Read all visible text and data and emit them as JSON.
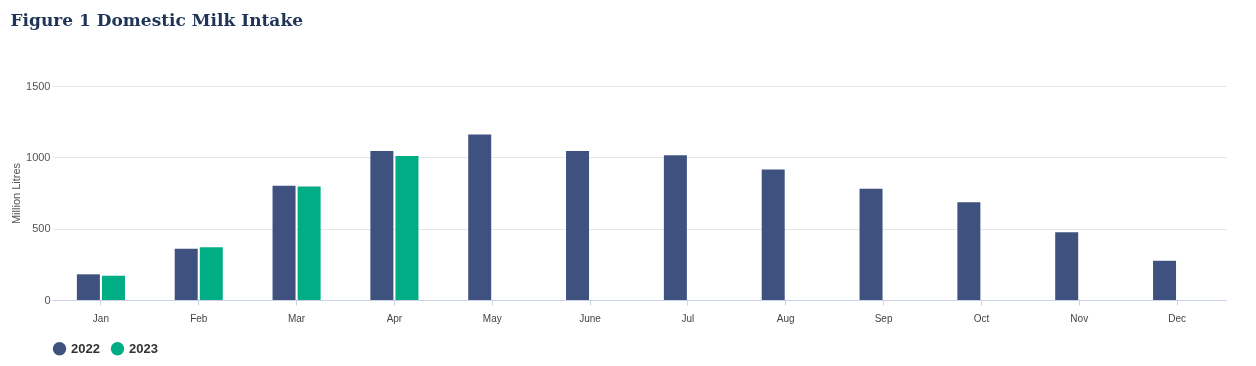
{
  "chart_data": {
    "type": "bar",
    "title": "Figure 1 Domestic Milk Intake",
    "ylabel": "Million Litres",
    "categories": [
      "Jan",
      "Feb",
      "Mar",
      "Apr",
      "May",
      "June",
      "Jul",
      "Aug",
      "Sep",
      "Oct",
      "Nov",
      "Dec"
    ],
    "series": [
      {
        "name": "2022",
        "color": "#3f527f",
        "values": [
          180,
          360,
          800,
          1045,
          1160,
          1045,
          1015,
          915,
          780,
          685,
          475,
          275
        ]
      },
      {
        "name": "2023",
        "color": "#00ad85",
        "values": [
          170,
          370,
          795,
          1010,
          null,
          null,
          null,
          null,
          null,
          null,
          null,
          null
        ]
      }
    ],
    "ylim": [
      0,
      1500
    ],
    "yticks": [
      0,
      500,
      1000,
      1500
    ],
    "grid": "y",
    "legend": "bottom"
  }
}
